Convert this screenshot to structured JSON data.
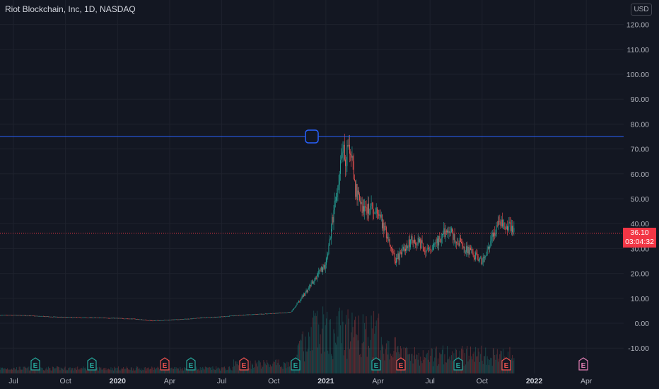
{
  "symbol": {
    "title": "Riot Blockchain, Inc, 1D, NASDAQ"
  },
  "currency": {
    "label": "USD"
  },
  "last_price": {
    "price": "36.10",
    "countdown": "03:04:32",
    "value": 36.1
  },
  "horizontal_line": {
    "price": 75.0,
    "color": "#2962ff"
  },
  "colors": {
    "up": "#26a69a",
    "down": "#ef5350",
    "background": "#131722",
    "grid": "#1e222d",
    "price_line": "#f23645"
  },
  "chart_data": {
    "type": "candlestick",
    "title": "Riot Blockchain, Inc, 1D, NASDAQ",
    "ylim": [
      -18.5,
      127
    ],
    "y_ticks": [
      "120.00",
      "110.00",
      "100.00",
      "90.00",
      "80.00",
      "70.00",
      "60.00",
      "50.00",
      "40.00",
      "30.00",
      "20.00",
      "10.00",
      "0.00",
      "-10.00"
    ],
    "x_ticks": [
      "Jul",
      "Oct",
      "2020",
      "Apr",
      "Jul",
      "Oct",
      "2021",
      "Apr",
      "Jul",
      "Oct",
      "2022",
      "Apr"
    ],
    "bold_x_ticks": [
      "2020",
      "2021",
      "2022"
    ],
    "price_path": [
      [
        "2019-07",
        3.2
      ],
      [
        "2019-08",
        3.0
      ],
      [
        "2019-09",
        2.6
      ],
      [
        "2019-10",
        2.4
      ],
      [
        "2019-11",
        2.3
      ],
      [
        "2019-12",
        2.2
      ],
      [
        "2020-01",
        2.0
      ],
      [
        "2020-02",
        1.7
      ],
      [
        "2020-03",
        1.0
      ],
      [
        "2020-04",
        1.3
      ],
      [
        "2020-05",
        1.7
      ],
      [
        "2020-06",
        2.3
      ],
      [
        "2020-07",
        2.6
      ],
      [
        "2020-08",
        3.2
      ],
      [
        "2020-09",
        3.6
      ],
      [
        "2020-10",
        3.9
      ],
      [
        "2020-11",
        4.5
      ],
      [
        "2020-12",
        14.0
      ],
      [
        "2021-01",
        24.0
      ],
      [
        "2021-02",
        70.0
      ],
      [
        "2021-03",
        47.0
      ],
      [
        "2021-04",
        45.0
      ],
      [
        "2021-05",
        25.0
      ],
      [
        "2021-06",
        34.0
      ],
      [
        "2021-07",
        29.0
      ],
      [
        "2021-08",
        38.0
      ],
      [
        "2021-09",
        30.0
      ],
      [
        "2021-10",
        25.0
      ],
      [
        "2021-11",
        42.0
      ],
      [
        "2021-12",
        36.1
      ]
    ],
    "earnings": [
      {
        "label": "E",
        "status": "reported"
      },
      {
        "label": "E",
        "status": "reported"
      },
      {
        "label": "E",
        "status": "missed"
      },
      {
        "label": "E",
        "status": "reported"
      },
      {
        "label": "E",
        "status": "missed"
      },
      {
        "label": "E",
        "status": "reported"
      },
      {
        "label": "E",
        "status": "reported"
      },
      {
        "label": "E",
        "status": "missed"
      },
      {
        "label": "E",
        "status": "reported"
      },
      {
        "label": "E",
        "status": "missed"
      },
      {
        "label": "E",
        "status": "upcoming"
      }
    ]
  }
}
